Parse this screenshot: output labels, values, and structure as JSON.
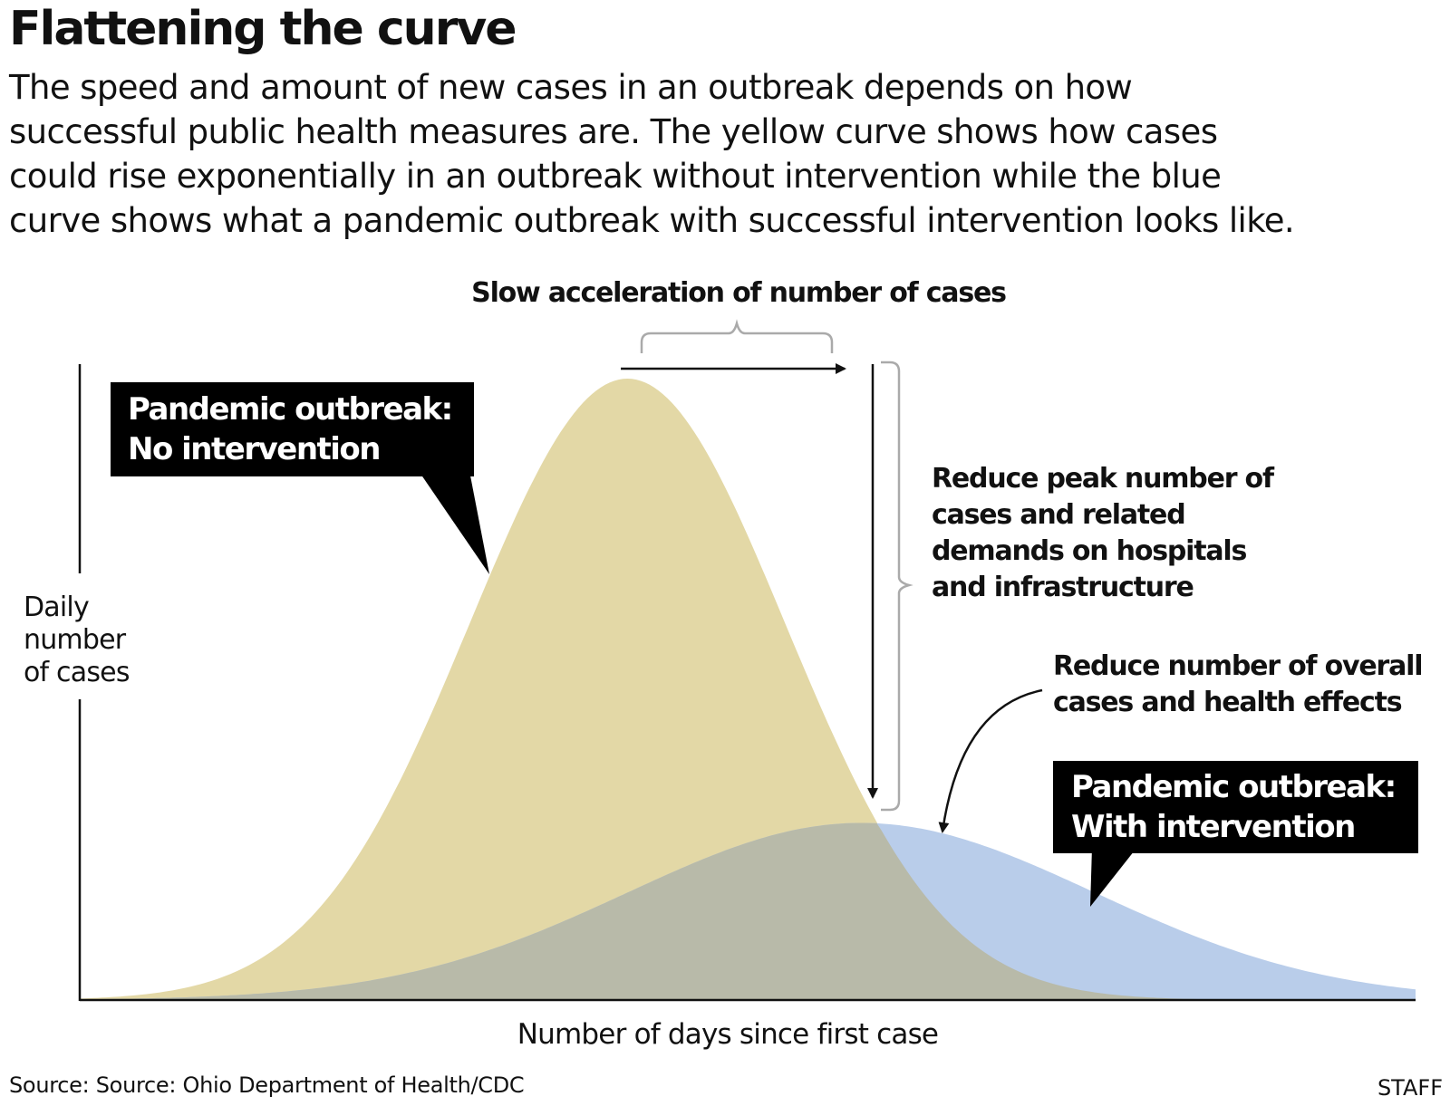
{
  "title": "Flattening the curve",
  "subtitle_lines": [
    "The speed and amount of new cases in an outbreak depends on how",
    "successful public health measures are. The yellow curve shows how cases",
    "could rise exponentially in an outbreak without intervention while the blue",
    "curve shows what a pandemic outbreak with successful intervention looks like."
  ],
  "source": "Source: Source: Ohio Department of Health/CDC",
  "credit": "STAFF",
  "colors": {
    "no_intervention": "#e3d8a6",
    "with_intervention": "#b9cdea",
    "overlap": "#b8baa9",
    "axis": "#111111",
    "bracket": "#aaaaaa",
    "label_box": "#000000"
  },
  "chart_data": {
    "type": "area",
    "xlabel": "Number of days since first case",
    "ylabel_lines": [
      "Daily",
      "number",
      "of cases"
    ],
    "grid": false,
    "axis_ticks": false,
    "curve_shape": "bell",
    "series": [
      {
        "name": "Pandemic outbreak: No intervention",
        "label_lines": [
          "Pandemic outbreak:",
          "No intervention"
        ],
        "color": "#e3d8a6",
        "peak_position": 0.41,
        "peak_relative_height": 1.0,
        "spread": 0.118
      },
      {
        "name": "Pandemic outbreak: With intervention",
        "label_lines": [
          "Pandemic outbreak:",
          "With intervention"
        ],
        "color": "#b9cdea",
        "peak_position": 0.585,
        "peak_relative_height": 0.285,
        "spread": 0.175
      }
    ],
    "annotations": [
      {
        "id": "slow-acceleration",
        "text_lines": [
          "Slow acceleration of number of cases"
        ],
        "type": "horizontal-arrow-with-bracket"
      },
      {
        "id": "reduce-peak",
        "text_lines": [
          "Reduce peak number of",
          "cases and related",
          "demands on hospitals",
          "and infrastructure"
        ],
        "type": "vertical-arrow-with-bracket"
      },
      {
        "id": "reduce-overall",
        "text_lines": [
          "Reduce number of overall",
          "cases and health effects"
        ],
        "type": "curved-arrow"
      }
    ]
  }
}
